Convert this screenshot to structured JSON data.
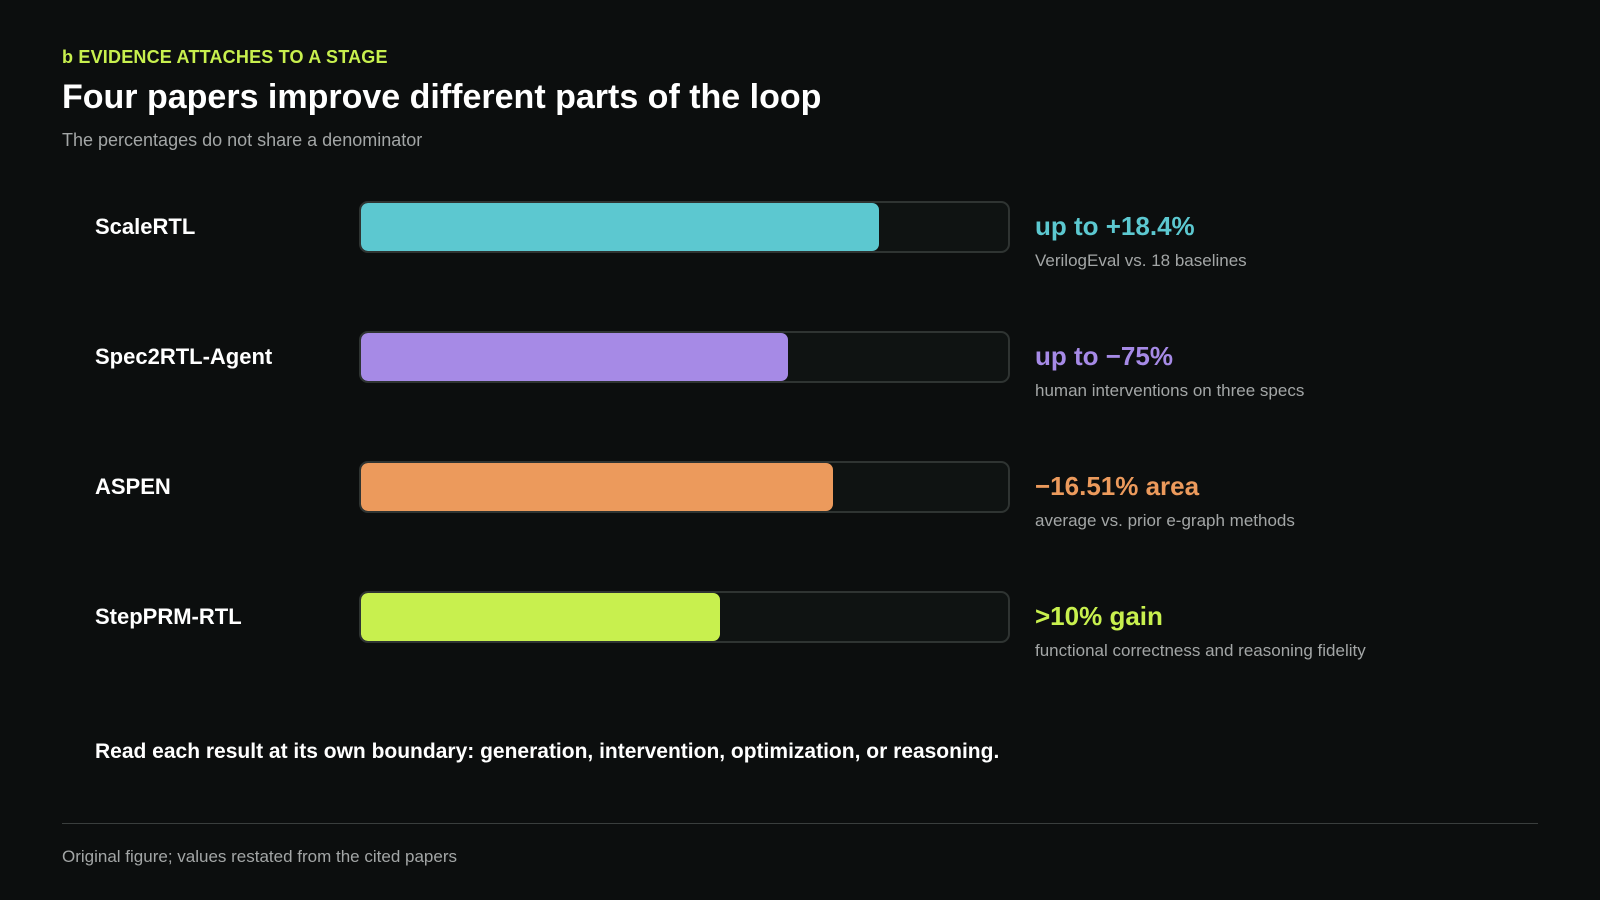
{
  "header": {
    "eyebrow": "b EVIDENCE ATTACHES TO A STAGE",
    "title": "Four papers improve different parts of the loop",
    "subtitle": "The percentages do not share a denominator"
  },
  "colors": {
    "background": "#0c0e0e",
    "accent": "#c8f04e",
    "track": "#0f1312",
    "track_border": "#2f3432",
    "muted_text": "#a3a6a6"
  },
  "chart_data": {
    "type": "bar",
    "orientation": "horizontal",
    "title": "Four papers improve different parts of the loop",
    "subtitle": "The percentages do not share a denominator",
    "categories": [
      "ScaleRTL",
      "Spec2RTL-Agent",
      "ASPEN",
      "StepPRM-RTL"
    ],
    "values": [
      0.8,
      0.66,
      0.73,
      0.555
    ],
    "value_labels": [
      "up to +18.4%",
      "up to −75%",
      "−16.51% area",
      ">10% gain"
    ],
    "notes": [
      "VerilogEval vs. 18 baselines",
      "human interventions on three specs",
      "average vs. prior e-graph methods",
      "functional correctness and reasoning fidelity"
    ],
    "bar_colors": [
      "#5cc8d0",
      "#a68ae6",
      "#ec9a5c",
      "#c8f04e"
    ],
    "xlim": [
      0,
      1
    ],
    "grid": false,
    "legend": "none"
  },
  "takeaway": "Read each result at its own boundary: generation, intervention, optimization, or reasoning.",
  "footer": "Original figure; values restated from the cited papers"
}
